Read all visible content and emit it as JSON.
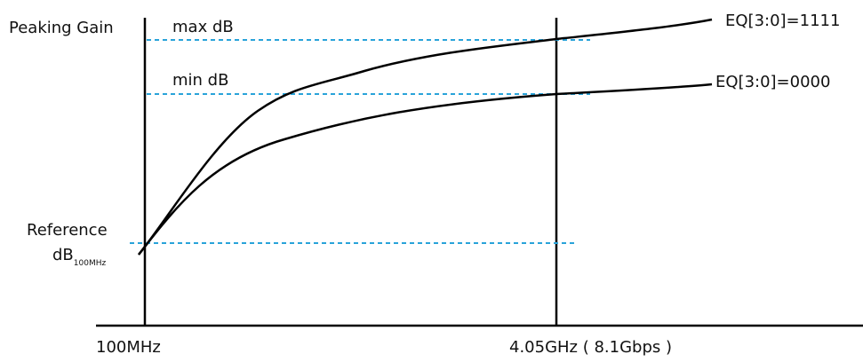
{
  "labels": {
    "y_axis": "Peaking Gain",
    "max_db": "max dB",
    "min_db": "min dB",
    "reference_line1": "Reference",
    "reference_base": "dB",
    "reference_subscript": "100MHz",
    "x_start": "100MHz",
    "x_end": "4.05GHz ( 8.1Gbps )"
  },
  "curves": [
    {
      "label": "EQ[3:0]=1111"
    },
    {
      "label": "EQ[3:0]=0000"
    }
  ],
  "colors": {
    "curve": "#000000",
    "axis": "#000000",
    "dashed": "#29a3d9"
  }
}
